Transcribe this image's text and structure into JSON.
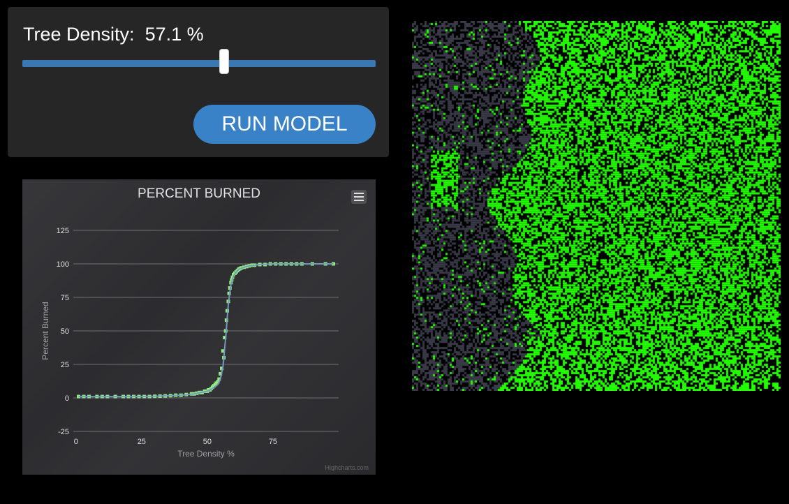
{
  "controls": {
    "density_prefix": "Tree Density:",
    "density_value": "57.1 %",
    "slider_fraction": 0.571,
    "run_label": "RUN MODEL"
  },
  "chart_data": {
    "type": "scatter",
    "title": "PERCENT BURNED",
    "xlabel": "Tree Density %",
    "ylabel": "Percent Burned",
    "xlim": [
      -1,
      100
    ],
    "ylim": [
      -25,
      125
    ],
    "x_ticks": [
      "0",
      "25",
      "50",
      "75"
    ],
    "x_tick_values": [
      0,
      25,
      50,
      75
    ],
    "y_ticks": [
      "125",
      "100",
      "75",
      "50",
      "25",
      "0",
      "-25"
    ],
    "y_tick_values": [
      125,
      100,
      75,
      50,
      25,
      0,
      -25
    ],
    "grid": true,
    "series": [
      {
        "color": "#90ee7e",
        "x": [
          1,
          3,
          5,
          8,
          10,
          12,
          15,
          18,
          20,
          22,
          24,
          26,
          28,
          30,
          32,
          34,
          36,
          38,
          40,
          42,
          44,
          45,
          46,
          47,
          48,
          49,
          50,
          50.5,
          51,
          51.5,
          52,
          52.5,
          53,
          53.5,
          54,
          54.5,
          55,
          55.5,
          56,
          56.3,
          56.6,
          57,
          57.3,
          57.6,
          58,
          58.3,
          58.6,
          59,
          59.3,
          59.6,
          60,
          60.5,
          61,
          61.5,
          62,
          62.5,
          63,
          64,
          65,
          66,
          67,
          68,
          70,
          72,
          74,
          76,
          78,
          80,
          82,
          84,
          86,
          90,
          95,
          98
        ],
        "y": [
          1,
          1,
          1,
          1,
          1,
          1,
          1,
          1,
          1,
          1,
          1,
          1,
          1,
          1.2,
          1.3,
          1.5,
          1.7,
          2,
          2,
          2.5,
          3,
          3,
          3.5,
          4,
          4,
          5,
          5,
          6,
          6,
          7,
          8,
          9,
          10,
          11,
          12,
          14,
          18,
          22,
          35,
          30,
          45,
          50,
          58,
          65,
          72,
          78,
          82,
          86,
          88,
          90,
          92,
          93,
          94,
          95,
          96,
          96.5,
          97,
          97.5,
          98,
          98.5,
          99,
          99,
          99.5,
          99.5,
          100,
          100,
          100,
          100,
          100,
          100,
          100,
          100,
          100,
          100
        ]
      },
      {
        "color": "#7798bf",
        "x": [
          1,
          10,
          20,
          30,
          40,
          45,
          50,
          52,
          54,
          55,
          56,
          57,
          58,
          59,
          60,
          61,
          62,
          64,
          66,
          70,
          75,
          80,
          90,
          98
        ],
        "y": [
          1,
          1,
          1,
          1.2,
          2,
          3,
          5,
          7,
          10,
          14,
          24,
          45,
          70,
          85,
          91,
          94,
          96,
          97.5,
          98.5,
          99.5,
          100,
          100,
          100,
          100
        ]
      }
    ]
  },
  "forest_grid": {
    "cols": 176,
    "rows": 177,
    "tree_color": "#22ff00",
    "burned_color": "#3a3a48",
    "empty_color": "#000000"
  }
}
